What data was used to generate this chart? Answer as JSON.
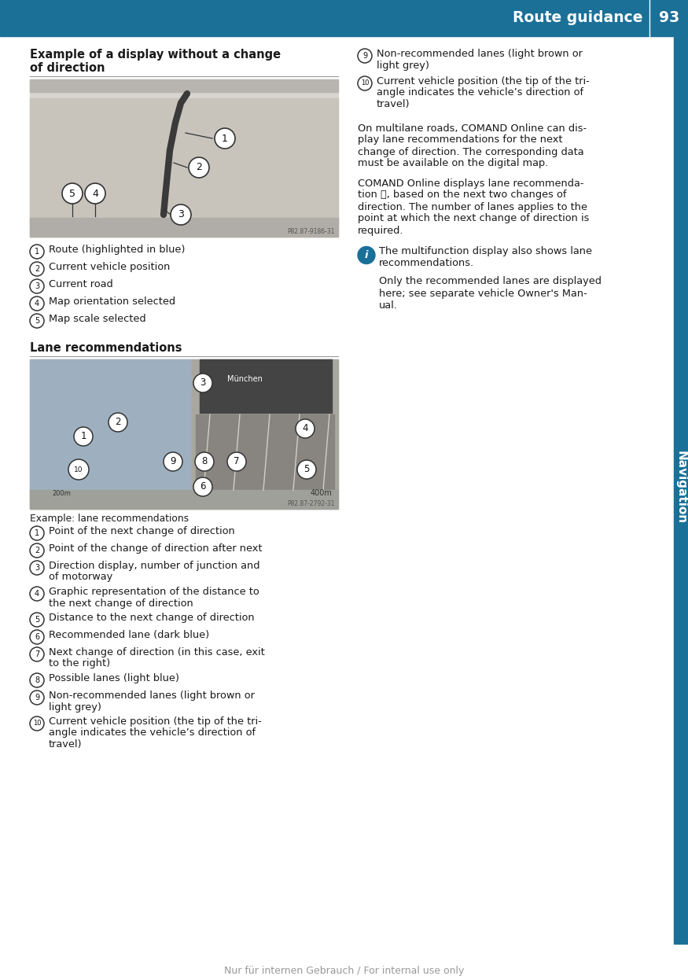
{
  "page_bg": "#ffffff",
  "header_bg": "#1b7098",
  "header_text": "Route guidance",
  "header_page": "93",
  "nav_bar_color": "#1b7098",
  "footer_text": "Nur für internen Gebrauch / For internal use only",
  "footer_color": "#999999",
  "title1_line1": "Example of a display without a change",
  "title1_line2": "of direction",
  "title2": "Lane recommendations",
  "left_items_section1": [
    {
      "num": "1",
      "text": "Route (highlighted in blue)"
    },
    {
      "num": "2",
      "text": "Current vehicle position"
    },
    {
      "num": "3",
      "text": "Current road"
    },
    {
      "num": "4",
      "text": "Map orientation selected"
    },
    {
      "num": "5",
      "text": "Map scale selected"
    }
  ],
  "lane_example_label": "Example: lane recommendations",
  "left_items_section2": [
    {
      "num": "1",
      "text": "Point of the next change of direction"
    },
    {
      "num": "2",
      "text": "Point of the change of direction after next"
    },
    {
      "num": "3",
      "text": "Direction display, number of junction and\nof motorway"
    },
    {
      "num": "4",
      "text": "Graphic representation of the distance to\nthe next change of direction"
    },
    {
      "num": "5",
      "text": "Distance to the next change of direction"
    },
    {
      "num": "6",
      "text": "Recommended lane (dark blue)"
    },
    {
      "num": "7",
      "text": "Next change of direction (in this case, exit\nto the right)"
    },
    {
      "num": "8",
      "text": "Possible lanes (light blue)"
    },
    {
      "num": "9",
      "text": "Non-recommended lanes (light brown or\nlight grey)"
    },
    {
      "num": "10",
      "text": "Current vehicle position (the tip of the tri-\nangle indicates the vehicle’s direction of\ntravel)"
    }
  ],
  "right_top_items": [
    {
      "num": "9",
      "text": "Non-recommended lanes (light brown or\nlight grey)"
    },
    {
      "num": "10",
      "text": "Current vehicle position (the tip of the tri-\nangle indicates the vehicle’s direction of\ntravel)"
    }
  ],
  "right_para1_lines": [
    "On multilane roads, COMAND Online can dis-",
    "play lane recommendations for the next",
    "change of direction. The corresponding data",
    "must be available on the digital map."
  ],
  "right_para2_lines": [
    "COMAND Online displays lane recommenda-",
    "tion ⓥ, based on the next two changes of",
    "direction. The number of lanes applies to the",
    "point at which the next change of direction is",
    "required."
  ],
  "info_lines": [
    "The multifunction display also shows lane",
    "recommendations.",
    "",
    "Only the recommended lanes are displayed",
    "here; see separate vehicle Owner's Man-",
    "ual."
  ],
  "text_color": "#1a1a1a",
  "divider_color": "#999999"
}
